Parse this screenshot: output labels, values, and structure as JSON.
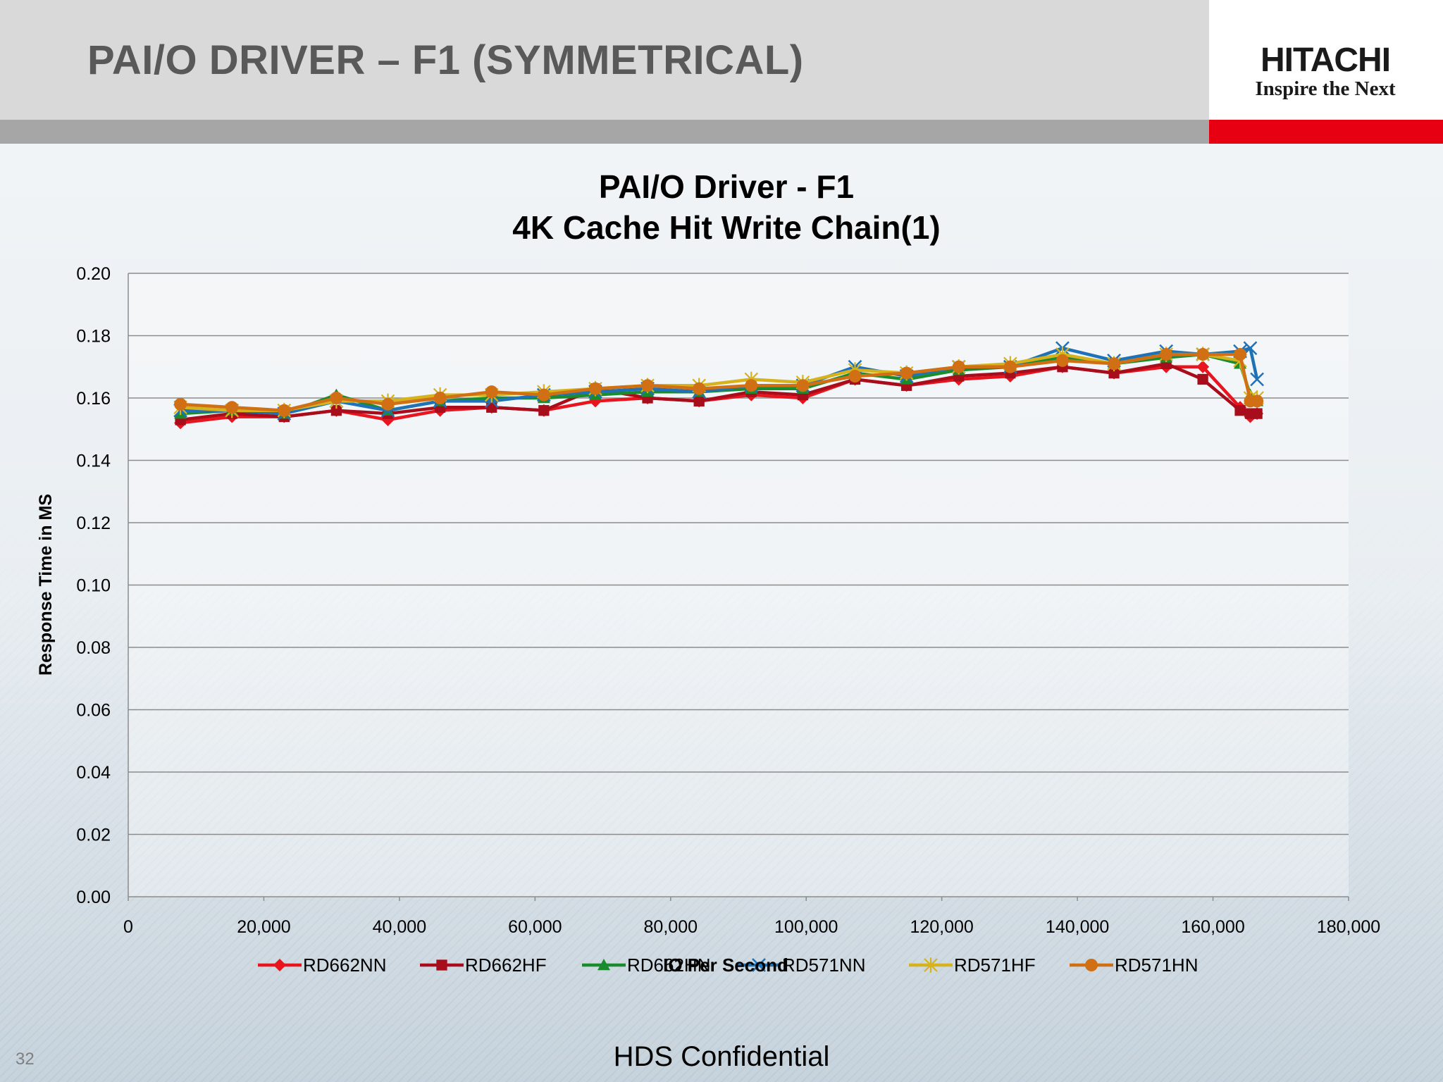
{
  "slide": {
    "title": "PAI/O DRIVER – F1 (SYMMETRICAL)",
    "page_number": "32",
    "footer": "HDS Confidential"
  },
  "logo": {
    "name": "HITACHI",
    "tagline": "Inspire the Next",
    "accent_color": "#e60012"
  },
  "chart_data": {
    "type": "line",
    "title": "PAI/O Driver - F1",
    "subtitle": "4K Cache Hit Write Chain(1)",
    "xlabel": "IO Per Second",
    "ylabel": "Response Time in MS",
    "xlim": [
      0,
      180000
    ],
    "ylim": [
      0,
      0.2
    ],
    "x_ticks": [
      "0",
      "20,000",
      "40,000",
      "60,000",
      "80,000",
      "100,000",
      "120,000",
      "140,000",
      "160,000",
      "180,000"
    ],
    "y_ticks": [
      "0.00",
      "0.02",
      "0.04",
      "0.06",
      "0.08",
      "0.10",
      "0.12",
      "0.14",
      "0.16",
      "0.18",
      "0.20"
    ],
    "grid": "horizontal",
    "legend": "bottom",
    "x": [
      7700,
      15300,
      23000,
      30700,
      38300,
      46000,
      53600,
      61300,
      68900,
      76600,
      84200,
      91900,
      99500,
      107200,
      114800,
      122500,
      130100,
      137800,
      145400,
      153100,
      158500,
      164000,
      165500,
      166500
    ],
    "series": [
      {
        "name": "RD662NN",
        "color": "#e8141e",
        "marker": "diamond",
        "values": [
          0.152,
          0.154,
          0.154,
          0.156,
          0.153,
          0.156,
          0.157,
          0.156,
          0.159,
          0.16,
          0.159,
          0.161,
          0.16,
          0.166,
          0.164,
          0.166,
          0.167,
          0.17,
          0.168,
          0.17,
          0.17,
          0.157,
          0.154,
          0.155
        ]
      },
      {
        "name": "RD662HF",
        "color": "#a80d1c",
        "marker": "square",
        "values": [
          0.153,
          0.155,
          0.154,
          0.156,
          0.155,
          0.157,
          0.157,
          0.156,
          0.163,
          0.16,
          0.159,
          0.162,
          0.161,
          0.166,
          0.164,
          0.167,
          0.168,
          0.17,
          0.168,
          0.171,
          0.166,
          0.156,
          0.155,
          0.155
        ]
      },
      {
        "name": "RD662HN",
        "color": "#1a8c2e",
        "marker": "triangle",
        "values": [
          0.155,
          0.156,
          0.155,
          0.161,
          0.156,
          0.159,
          0.16,
          0.16,
          0.161,
          0.162,
          0.162,
          0.163,
          0.163,
          0.168,
          0.166,
          0.169,
          0.17,
          0.173,
          0.171,
          0.173,
          0.174,
          0.171,
          0.161,
          0.159
        ]
      },
      {
        "name": "RD571NN",
        "color": "#1e72b5",
        "marker": "x",
        "values": [
          0.156,
          0.156,
          0.155,
          0.159,
          0.156,
          0.159,
          0.159,
          0.161,
          0.162,
          0.163,
          0.162,
          0.164,
          0.164,
          0.17,
          0.167,
          0.17,
          0.17,
          0.176,
          0.172,
          0.175,
          0.174,
          0.175,
          0.176,
          0.166
        ]
      },
      {
        "name": "RD571HF",
        "color": "#d6b21c",
        "marker": "star",
        "values": [
          0.157,
          0.156,
          0.156,
          0.159,
          0.159,
          0.161,
          0.161,
          0.162,
          0.163,
          0.164,
          0.164,
          0.166,
          0.165,
          0.169,
          0.168,
          0.17,
          0.171,
          0.174,
          0.171,
          0.174,
          0.174,
          0.172,
          0.16,
          0.16
        ]
      },
      {
        "name": "RD571HN",
        "color": "#d06f14",
        "marker": "circle",
        "values": [
          0.158,
          0.157,
          0.156,
          0.16,
          0.158,
          0.16,
          0.162,
          0.161,
          0.163,
          0.164,
          0.163,
          0.164,
          0.164,
          0.167,
          0.168,
          0.17,
          0.17,
          0.172,
          0.171,
          0.174,
          0.174,
          0.174,
          0.159,
          0.159
        ]
      }
    ]
  }
}
